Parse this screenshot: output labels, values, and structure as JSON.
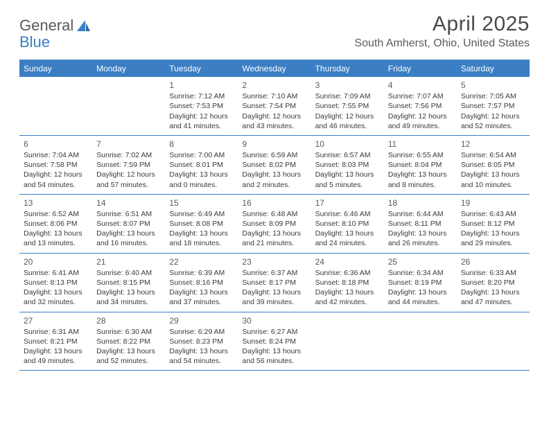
{
  "logo": {
    "word1": "General",
    "word2": "Blue"
  },
  "title": "April 2025",
  "location": "South Amherst, Ohio, United States",
  "colors": {
    "header_bar": "#3b7ec4",
    "row_border": "#3b7ec4",
    "text": "#3a3a3a",
    "muted": "#5a5a5a",
    "background": "#ffffff"
  },
  "weekdays": [
    "Sunday",
    "Monday",
    "Tuesday",
    "Wednesday",
    "Thursday",
    "Friday",
    "Saturday"
  ],
  "weeks": [
    [
      null,
      null,
      {
        "n": "1",
        "sr": "Sunrise: 7:12 AM",
        "ss": "Sunset: 7:53 PM",
        "d1": "Daylight: 12 hours",
        "d2": "and 41 minutes."
      },
      {
        "n": "2",
        "sr": "Sunrise: 7:10 AM",
        "ss": "Sunset: 7:54 PM",
        "d1": "Daylight: 12 hours",
        "d2": "and 43 minutes."
      },
      {
        "n": "3",
        "sr": "Sunrise: 7:09 AM",
        "ss": "Sunset: 7:55 PM",
        "d1": "Daylight: 12 hours",
        "d2": "and 46 minutes."
      },
      {
        "n": "4",
        "sr": "Sunrise: 7:07 AM",
        "ss": "Sunset: 7:56 PM",
        "d1": "Daylight: 12 hours",
        "d2": "and 49 minutes."
      },
      {
        "n": "5",
        "sr": "Sunrise: 7:05 AM",
        "ss": "Sunset: 7:57 PM",
        "d1": "Daylight: 12 hours",
        "d2": "and 52 minutes."
      }
    ],
    [
      {
        "n": "6",
        "sr": "Sunrise: 7:04 AM",
        "ss": "Sunset: 7:58 PM",
        "d1": "Daylight: 12 hours",
        "d2": "and 54 minutes."
      },
      {
        "n": "7",
        "sr": "Sunrise: 7:02 AM",
        "ss": "Sunset: 7:59 PM",
        "d1": "Daylight: 12 hours",
        "d2": "and 57 minutes."
      },
      {
        "n": "8",
        "sr": "Sunrise: 7:00 AM",
        "ss": "Sunset: 8:01 PM",
        "d1": "Daylight: 13 hours",
        "d2": "and 0 minutes."
      },
      {
        "n": "9",
        "sr": "Sunrise: 6:59 AM",
        "ss": "Sunset: 8:02 PM",
        "d1": "Daylight: 13 hours",
        "d2": "and 2 minutes."
      },
      {
        "n": "10",
        "sr": "Sunrise: 6:57 AM",
        "ss": "Sunset: 8:03 PM",
        "d1": "Daylight: 13 hours",
        "d2": "and 5 minutes."
      },
      {
        "n": "11",
        "sr": "Sunrise: 6:55 AM",
        "ss": "Sunset: 8:04 PM",
        "d1": "Daylight: 13 hours",
        "d2": "and 8 minutes."
      },
      {
        "n": "12",
        "sr": "Sunrise: 6:54 AM",
        "ss": "Sunset: 8:05 PM",
        "d1": "Daylight: 13 hours",
        "d2": "and 10 minutes."
      }
    ],
    [
      {
        "n": "13",
        "sr": "Sunrise: 6:52 AM",
        "ss": "Sunset: 8:06 PM",
        "d1": "Daylight: 13 hours",
        "d2": "and 13 minutes."
      },
      {
        "n": "14",
        "sr": "Sunrise: 6:51 AM",
        "ss": "Sunset: 8:07 PM",
        "d1": "Daylight: 13 hours",
        "d2": "and 16 minutes."
      },
      {
        "n": "15",
        "sr": "Sunrise: 6:49 AM",
        "ss": "Sunset: 8:08 PM",
        "d1": "Daylight: 13 hours",
        "d2": "and 18 minutes."
      },
      {
        "n": "16",
        "sr": "Sunrise: 6:48 AM",
        "ss": "Sunset: 8:09 PM",
        "d1": "Daylight: 13 hours",
        "d2": "and 21 minutes."
      },
      {
        "n": "17",
        "sr": "Sunrise: 6:46 AM",
        "ss": "Sunset: 8:10 PM",
        "d1": "Daylight: 13 hours",
        "d2": "and 24 minutes."
      },
      {
        "n": "18",
        "sr": "Sunrise: 6:44 AM",
        "ss": "Sunset: 8:11 PM",
        "d1": "Daylight: 13 hours",
        "d2": "and 26 minutes."
      },
      {
        "n": "19",
        "sr": "Sunrise: 6:43 AM",
        "ss": "Sunset: 8:12 PM",
        "d1": "Daylight: 13 hours",
        "d2": "and 29 minutes."
      }
    ],
    [
      {
        "n": "20",
        "sr": "Sunrise: 6:41 AM",
        "ss": "Sunset: 8:13 PM",
        "d1": "Daylight: 13 hours",
        "d2": "and 32 minutes."
      },
      {
        "n": "21",
        "sr": "Sunrise: 6:40 AM",
        "ss": "Sunset: 8:15 PM",
        "d1": "Daylight: 13 hours",
        "d2": "and 34 minutes."
      },
      {
        "n": "22",
        "sr": "Sunrise: 6:39 AM",
        "ss": "Sunset: 8:16 PM",
        "d1": "Daylight: 13 hours",
        "d2": "and 37 minutes."
      },
      {
        "n": "23",
        "sr": "Sunrise: 6:37 AM",
        "ss": "Sunset: 8:17 PM",
        "d1": "Daylight: 13 hours",
        "d2": "and 39 minutes."
      },
      {
        "n": "24",
        "sr": "Sunrise: 6:36 AM",
        "ss": "Sunset: 8:18 PM",
        "d1": "Daylight: 13 hours",
        "d2": "and 42 minutes."
      },
      {
        "n": "25",
        "sr": "Sunrise: 6:34 AM",
        "ss": "Sunset: 8:19 PM",
        "d1": "Daylight: 13 hours",
        "d2": "and 44 minutes."
      },
      {
        "n": "26",
        "sr": "Sunrise: 6:33 AM",
        "ss": "Sunset: 8:20 PM",
        "d1": "Daylight: 13 hours",
        "d2": "and 47 minutes."
      }
    ],
    [
      {
        "n": "27",
        "sr": "Sunrise: 6:31 AM",
        "ss": "Sunset: 8:21 PM",
        "d1": "Daylight: 13 hours",
        "d2": "and 49 minutes."
      },
      {
        "n": "28",
        "sr": "Sunrise: 6:30 AM",
        "ss": "Sunset: 8:22 PM",
        "d1": "Daylight: 13 hours",
        "d2": "and 52 minutes."
      },
      {
        "n": "29",
        "sr": "Sunrise: 6:29 AM",
        "ss": "Sunset: 8:23 PM",
        "d1": "Daylight: 13 hours",
        "d2": "and 54 minutes."
      },
      {
        "n": "30",
        "sr": "Sunrise: 6:27 AM",
        "ss": "Sunset: 8:24 PM",
        "d1": "Daylight: 13 hours",
        "d2": "and 56 minutes."
      },
      null,
      null,
      null
    ]
  ]
}
